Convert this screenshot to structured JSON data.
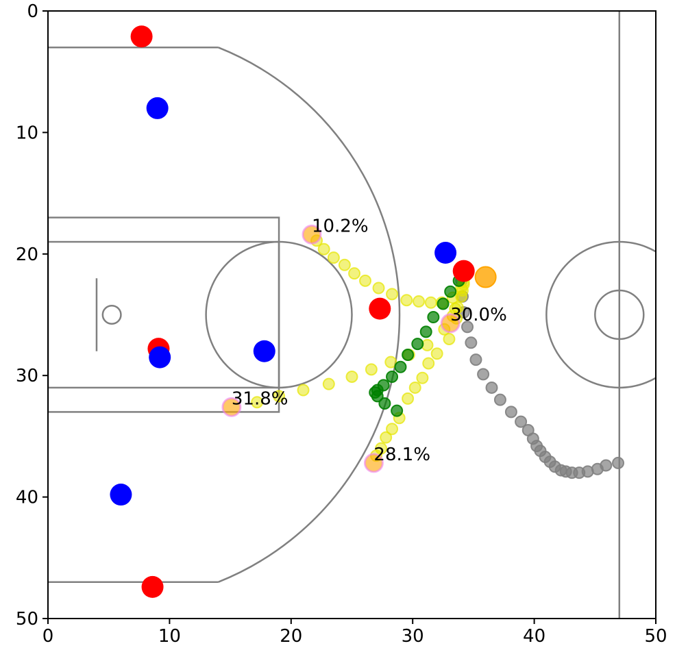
{
  "chart_data": {
    "type": "scatter",
    "xlim": [
      0,
      50
    ],
    "ylim": [
      50,
      0
    ],
    "xticks": [
      0,
      10,
      20,
      30,
      40,
      50
    ],
    "yticks": [
      0,
      10,
      20,
      30,
      40,
      50
    ],
    "series": [
      {
        "color": "#808080",
        "alpha": 0.7,
        "x": [
          46.9,
          45.9,
          45.2,
          44.4,
          43.7,
          43.1,
          42.6,
          42.2,
          41.7,
          41.3,
          40.9,
          40.5,
          40.2,
          39.9,
          39.5,
          38.9,
          38.1,
          37.2,
          36.5,
          35.8,
          35.2,
          34.8,
          34.5,
          34.2,
          34.1,
          34.0,
          34.2
        ],
        "values": [
          37.2,
          37.4,
          37.7,
          37.9,
          38.0,
          38.0,
          37.9,
          37.8,
          37.5,
          37.1,
          36.7,
          36.2,
          35.8,
          35.2,
          34.5,
          33.8,
          33.0,
          32.0,
          31.0,
          29.9,
          28.7,
          27.3,
          26.0,
          24.8,
          23.5,
          22.2,
          21.3
        ]
      },
      {
        "color": "#e6e600",
        "alpha": 0.5,
        "x": [
          34.2,
          33.3,
          32.4,
          31.5,
          30.5,
          29.5,
          28.3,
          27.2,
          26.1,
          25.2,
          24.4,
          23.5,
          22.7,
          22.1
        ],
        "values": [
          22.3,
          23.6,
          24.0,
          24.0,
          23.9,
          23.8,
          23.3,
          22.8,
          22.2,
          21.6,
          20.9,
          20.3,
          19.6,
          18.9
        ]
      },
      {
        "color": "#e6e600",
        "alpha": 0.5,
        "x": [
          34.0,
          33.5,
          32.6,
          31.2,
          29.7,
          28.2,
          26.6,
          25.0,
          23.1,
          21.0,
          19.0,
          17.2
        ],
        "values": [
          22.8,
          24.5,
          26.2,
          27.5,
          28.3,
          28.9,
          29.5,
          30.1,
          30.7,
          31.2,
          31.7,
          32.2
        ]
      },
      {
        "color": "#e6e600",
        "alpha": 0.5,
        "x": [
          34.1,
          33.6,
          33.0,
          32.0,
          31.3,
          30.8,
          30.2,
          29.6,
          28.9,
          28.3,
          27.8,
          27.4,
          27.0
        ],
        "values": [
          23.0,
          25.3,
          27.0,
          28.2,
          29.0,
          30.2,
          31.0,
          31.9,
          33.5,
          34.4,
          35.1,
          36.0,
          36.6
        ]
      },
      {
        "color": "#e6e600",
        "alpha": 0.5,
        "x": [
          34.2,
          34.0,
          33.7,
          33.3
        ],
        "values": [
          22.5,
          23.5,
          24.4,
          25.1
        ]
      },
      {
        "color": "#008000",
        "alpha": 0.7,
        "x": [
          33.8,
          33.1,
          32.5,
          31.7,
          31.1,
          30.4,
          29.6,
          29.0,
          28.3,
          27.6,
          27.1,
          26.9,
          27.1,
          27.7,
          28.7
        ],
        "values": [
          22.2,
          23.1,
          24.1,
          25.2,
          26.4,
          27.4,
          28.3,
          29.3,
          30.1,
          30.8,
          31.2,
          31.4,
          31.7,
          32.3,
          32.9
        ]
      },
      {
        "color": "#ffa500",
        "alpha": 0.6,
        "edgecolor": "#ee82ee",
        "x": [
          21.7,
          15.1,
          26.8,
          33.1
        ],
        "values": [
          18.4,
          32.6,
          37.2,
          25.7
        ],
        "value_labels": [
          "10.2%",
          "31.8%",
          "28.1%",
          "30.0%"
        ]
      },
      {
        "color": "#ff0000",
        "alpha": 1,
        "x": [
          7.7,
          9.1,
          8.6,
          27.3,
          34.2
        ],
        "values": [
          2.1,
          27.8,
          47.4,
          24.5,
          21.4
        ]
      },
      {
        "color": "#0000ff",
        "alpha": 1,
        "x": [
          9.0,
          9.2,
          6.0,
          17.8,
          32.7
        ],
        "values": [
          8.0,
          28.5,
          39.8,
          28.0,
          19.9
        ]
      },
      {
        "color": "#ffa500",
        "alpha": 0.8,
        "x": [
          36.0
        ],
        "values": [
          21.9
        ]
      }
    ]
  }
}
